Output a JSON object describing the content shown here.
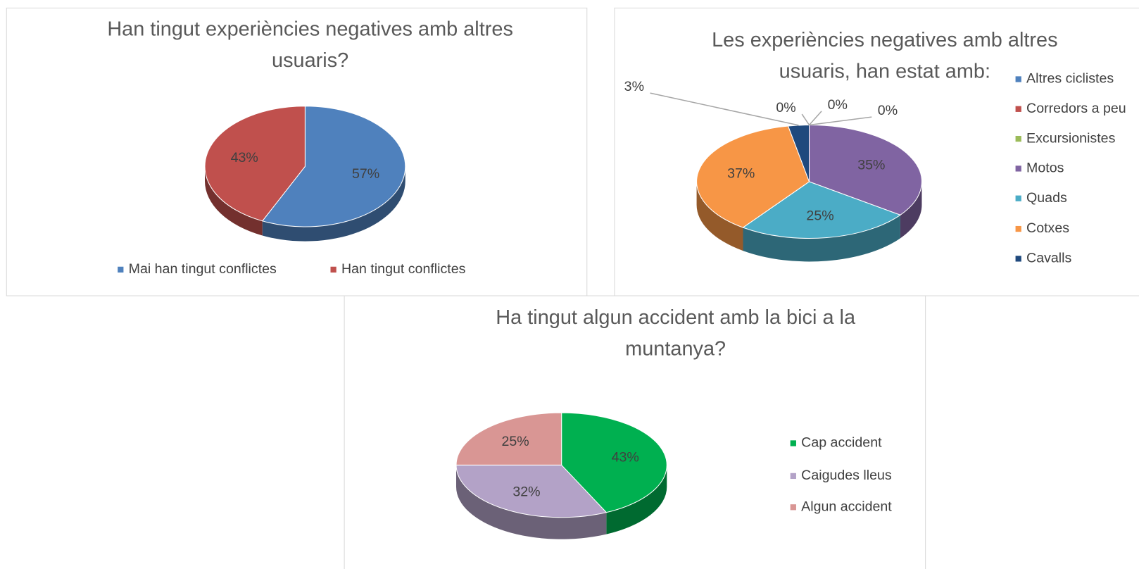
{
  "chart_data": [
    {
      "type": "pie",
      "title": "Han tingut experiències negatives amb altres usuaris?",
      "categories": [
        "Mai han tingut conflictes",
        "Han tingut conflictes"
      ],
      "values": [
        57,
        43
      ],
      "value_labels": [
        "57%",
        "43%"
      ],
      "colors": [
        "#4f81bd",
        "#c0504d"
      ],
      "legend": "bottom"
    },
    {
      "type": "pie",
      "title": "Les experiències negatives amb altres usuaris, han estat amb:",
      "categories": [
        "Altres ciclistes",
        "Corredors a peu",
        "Excursionistes",
        "Motos",
        "Quads",
        "Cotxes",
        "Cavalls"
      ],
      "values": [
        0,
        0,
        0,
        35,
        25,
        37,
        3
      ],
      "value_labels": [
        "0%",
        "0%",
        "0%",
        "35%",
        "25%",
        "37%",
        "3%"
      ],
      "colors": [
        "#4f81bd",
        "#c0504d",
        "#9bbb59",
        "#8064a2",
        "#4bacc6",
        "#f79646",
        "#1f497d"
      ],
      "legend": "right"
    },
    {
      "type": "pie",
      "title": "Ha tingut algun accident amb la bici a la muntanya?",
      "categories": [
        "Cap accident",
        "Caigudes lleus",
        "Algun accident"
      ],
      "values": [
        43,
        32,
        25
      ],
      "value_labels": [
        "43%",
        "32%",
        "25%"
      ],
      "colors": [
        "#00b050",
        "#b3a2c7",
        "#d99694"
      ],
      "legend": "right"
    }
  ]
}
